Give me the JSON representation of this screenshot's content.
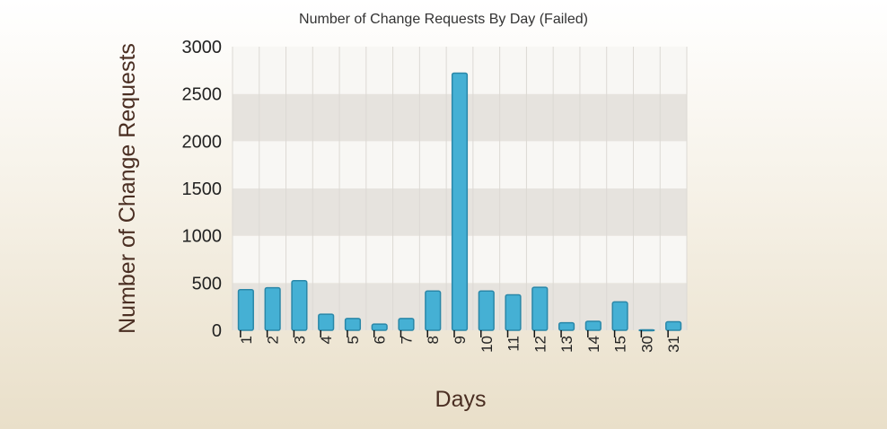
{
  "chart_data": {
    "type": "bar",
    "title": "Number of Change Requests By Day (Failed)",
    "xlabel": "Days",
    "ylabel": "Number of Change Requests",
    "categories": [
      "1",
      "2",
      "3",
      "4",
      "5",
      "6",
      "7",
      "8",
      "9",
      "10",
      "11",
      "12",
      "13",
      "14",
      "15",
      "30",
      "31"
    ],
    "values": [
      430,
      450,
      525,
      170,
      125,
      65,
      125,
      415,
      2720,
      415,
      375,
      455,
      80,
      95,
      300,
      5,
      90
    ],
    "ylim": [
      0,
      3000
    ],
    "yticks": [
      "0",
      "500",
      "1000",
      "1500",
      "2000",
      "2500",
      "3000"
    ],
    "grid": true,
    "legend": "none",
    "colors": {
      "bar_fill": "#45b0d4",
      "bar_stroke": "#2a87a8",
      "band_dark": "#e6e3de",
      "band_light": "#f8f7f4",
      "grid": "#dcd9d4"
    }
  }
}
